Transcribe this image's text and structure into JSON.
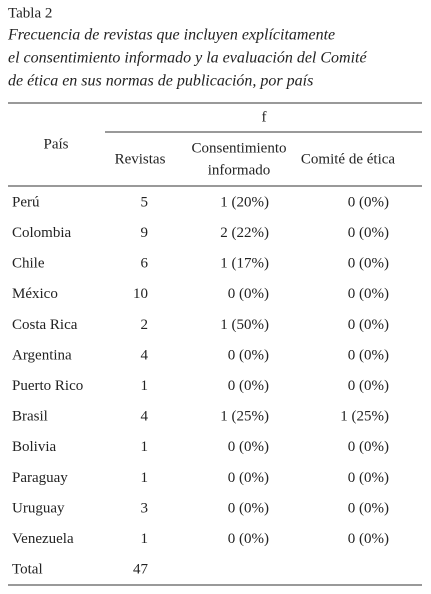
{
  "label": "Tabla 2",
  "title_lines": [
    "Frecuencia de revistas que incluyen explícitamente",
    "el consentimiento informado y la evaluación del Comité",
    "de ética en sus normas de publicación, por país"
  ],
  "table": {
    "header": {
      "country": "País",
      "group": "f",
      "revistas": "Revistas",
      "consent": [
        "Consentimiento",
        "informado"
      ],
      "comite": "Comité de ética"
    },
    "rows": [
      [
        "Perú",
        5,
        "1 (20%)",
        "0 (0%)"
      ],
      [
        "Colombia",
        9,
        "2 (22%)",
        "0 (0%)"
      ],
      [
        "Chile",
        6,
        "1 (17%)",
        "0 (0%)"
      ],
      [
        "México",
        10,
        "0 (0%)",
        "0 (0%)"
      ],
      [
        "Costa Rica",
        2,
        "1 (50%)",
        "0 (0%)"
      ],
      [
        "Argentina",
        4,
        "0 (0%)",
        "0 (0%)"
      ],
      [
        "Puerto Rico",
        1,
        "0 (0%)",
        "0 (0%)"
      ],
      [
        "Brasil",
        4,
        "1 (25%)",
        "1 (25%)"
      ],
      [
        "Bolivia",
        1,
        "0 (0%)",
        "0 (0%)"
      ],
      [
        "Paraguay",
        1,
        "0 (0%)",
        "0 (0%)"
      ],
      [
        "Uruguay",
        3,
        "0 (0%)",
        "0 (0%)"
      ],
      [
        "Venezuela",
        1,
        "0 (0%)",
        "0 (0%)"
      ],
      [
        "Total",
        47
      ]
    ]
  }
}
